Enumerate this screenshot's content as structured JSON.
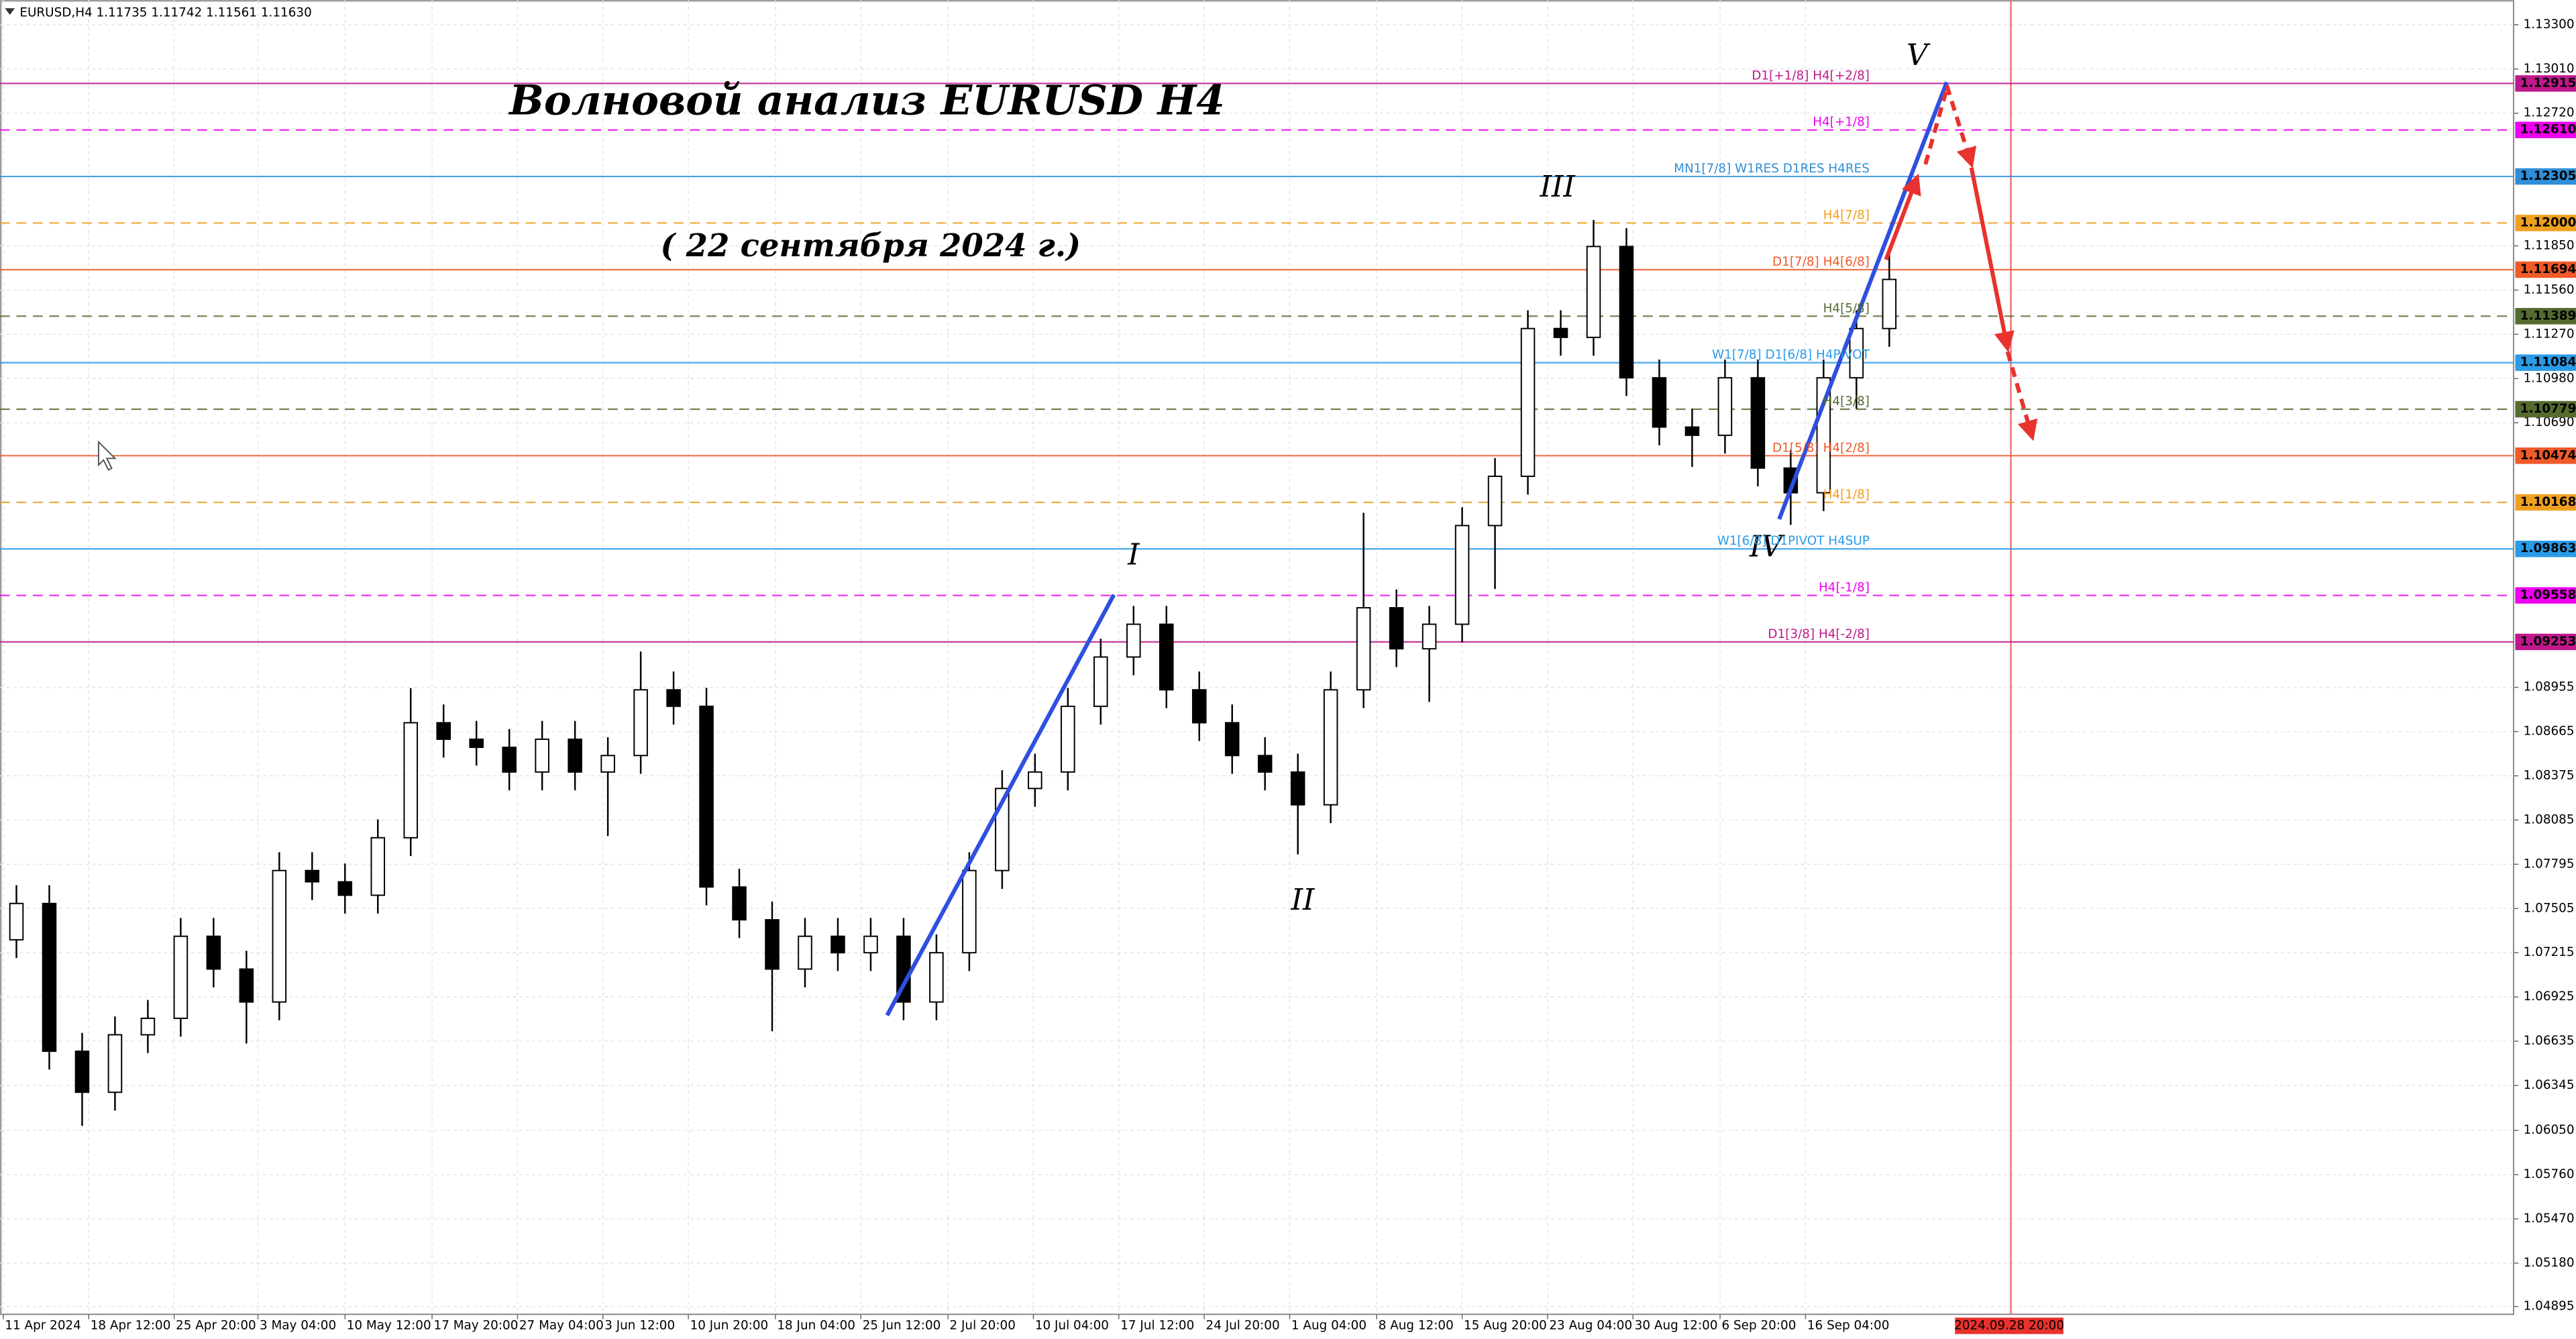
{
  "chart_data": {
    "type": "candlestick",
    "header": "EURUSD,H4  1.11735 1.11742 1.11561 1.11630",
    "title": "Волновой анализ EURUSD H4",
    "subtitle": "( 22 сентября 2024 г.)",
    "wave_labels": [
      "I",
      "II",
      "III",
      "IV",
      "V"
    ],
    "open": [
      1.073,
      1.07538,
      1.06569,
      1.063,
      1.06677,
      1.06785,
      1.07323,
      1.07108,
      1.06892,
      1.07754,
      1.0768,
      1.07592,
      1.07969,
      1.08723,
      1.08615,
      1.08562,
      1.084,
      1.08615,
      1.084,
      1.08508,
      1.08939,
      1.08831,
      1.07646,
      1.07431,
      1.07108,
      1.07323,
      1.07215,
      1.07323,
      1.06892,
      1.07215,
      1.07754,
      1.08292,
      1.084,
      1.08831,
      1.09154,
      1.09369,
      1.08939,
      1.08723,
      1.08508,
      1.084,
      1.08185,
      1.08939,
      1.09477,
      1.09208,
      1.09369,
      1.10016,
      1.10339,
      1.11308,
      1.1125,
      1.11846,
      1.10985,
      1.10662,
      1.10608,
      1.10985,
      1.10393,
      1.10231,
      1.10985,
      1.11308
    ],
    "high": [
      1.07658,
      1.07658,
      1.06689,
      1.06797,
      1.06905,
      1.07443,
      1.07443,
      1.07228,
      1.07874,
      1.07874,
      1.078,
      1.08089,
      1.0895,
      1.08843,
      1.08735,
      1.08682,
      1.08735,
      1.08735,
      1.08628,
      1.0919,
      1.09059,
      1.08951,
      1.07766,
      1.07551,
      1.07443,
      1.07443,
      1.07443,
      1.07443,
      1.07335,
      1.07874,
      1.08412,
      1.0852,
      1.08951,
      1.09274,
      1.09489,
      1.09489,
      1.09059,
      1.08843,
      1.08628,
      1.0852,
      1.09059,
      1.101,
      1.09597,
      1.09489,
      1.10136,
      1.10459,
      1.11428,
      1.11428,
      1.1202,
      1.11966,
      1.11105,
      1.10782,
      1.11105,
      1.11105,
      1.10513,
      1.11105,
      1.11428,
      1.1181
    ],
    "low": [
      1.0718,
      1.06449,
      1.0608,
      1.0618,
      1.06557,
      1.06665,
      1.06988,
      1.0662,
      1.06772,
      1.0756,
      1.07472,
      1.07472,
      1.07849,
      1.08495,
      1.08442,
      1.0828,
      1.0828,
      1.0828,
      1.0798,
      1.08388,
      1.08711,
      1.07526,
      1.07311,
      1.067,
      1.06988,
      1.07095,
      1.07095,
      1.06772,
      1.06772,
      1.07095,
      1.07634,
      1.08172,
      1.0828,
      1.08711,
      1.09034,
      1.08819,
      1.08603,
      1.08388,
      1.0828,
      1.0786,
      1.08065,
      1.08819,
      1.09088,
      1.0886,
      1.09249,
      1.096,
      1.10219,
      1.1113,
      1.1113,
      1.10865,
      1.10542,
      1.104,
      1.10488,
      1.10273,
      1.1002,
      1.10111,
      1.1078,
      1.11188
    ],
    "close": [
      1.07538,
      1.06569,
      1.063,
      1.06677,
      1.06785,
      1.07323,
      1.07108,
      1.06892,
      1.07754,
      1.0768,
      1.07592,
      1.07969,
      1.08723,
      1.08615,
      1.08562,
      1.084,
      1.08615,
      1.084,
      1.08508,
      1.08939,
      1.08831,
      1.07646,
      1.07431,
      1.07108,
      1.07323,
      1.07215,
      1.07323,
      1.06892,
      1.07215,
      1.07754,
      1.08292,
      1.084,
      1.08831,
      1.09154,
      1.09369,
      1.08939,
      1.08723,
      1.08508,
      1.084,
      1.08185,
      1.08939,
      1.09477,
      1.09208,
      1.09369,
      1.10016,
      1.10339,
      1.11308,
      1.1125,
      1.11846,
      1.10985,
      1.10662,
      1.10608,
      1.10985,
      1.10393,
      1.10231,
      1.10985,
      1.11308,
      1.1163
    ],
    "ylim": [
      1.04844,
      1.13462
    ],
    "yticks": [
      {
        "value": 1.133,
        "label": "1.13300"
      },
      {
        "value": 1.1301,
        "label": "1.13010"
      },
      {
        "value": 1.1272,
        "label": "1.12720"
      },
      {
        "value": 1.1185,
        "label": "1.11850"
      },
      {
        "value": 1.1156,
        "label": "1.11560"
      },
      {
        "value": 1.1127,
        "label": "1.11270"
      },
      {
        "value": 1.1098,
        "label": "1.10980"
      },
      {
        "value": 1.1069,
        "label": "1.10690"
      },
      {
        "value": 1.08955,
        "label": "1.08955"
      },
      {
        "value": 1.08665,
        "label": "1.08665"
      },
      {
        "value": 1.08375,
        "label": "1.08375"
      },
      {
        "value": 1.08085,
        "label": "1.08085"
      },
      {
        "value": 1.07795,
        "label": "1.07795"
      },
      {
        "value": 1.07505,
        "label": "1.07505"
      },
      {
        "value": 1.07215,
        "label": "1.07215"
      },
      {
        "value": 1.06925,
        "label": "1.06925"
      },
      {
        "value": 1.06635,
        "label": "1.06635"
      },
      {
        "value": 1.06345,
        "label": "1.06345"
      },
      {
        "value": 1.0605,
        "label": "1.06050"
      },
      {
        "value": 1.0576,
        "label": "1.05760"
      },
      {
        "value": 1.0547,
        "label": "1.05470"
      },
      {
        "value": 1.0518,
        "label": "1.05180"
      },
      {
        "value": 1.04895,
        "label": "1.04895"
      }
    ],
    "xlim": [
      0,
      76.5
    ],
    "xticks": [
      {
        "value": 0.1,
        "label": "11 Apr 2024"
      },
      {
        "value": 2.7,
        "label": "18 Apr 12:00"
      },
      {
        "value": 5.3,
        "label": "25 Apr 20:00"
      },
      {
        "value": 7.85,
        "label": "3 May 04:00"
      },
      {
        "value": 10.5,
        "label": "10 May 12:00"
      },
      {
        "value": 13.15,
        "label": "17 May 20:00"
      },
      {
        "value": 15.75,
        "label": "27 May 04:00"
      },
      {
        "value": 18.35,
        "label": "3 Jun 12:00"
      },
      {
        "value": 20.95,
        "label": "10 Jun 20:00"
      },
      {
        "value": 23.6,
        "label": "18 Jun 04:00"
      },
      {
        "value": 26.2,
        "label": "25 Jun 12:00"
      },
      {
        "value": 28.85,
        "label": "2 Jul 20:00"
      },
      {
        "value": 31.45,
        "label": "10 Jul 04:00"
      },
      {
        "value": 34.05,
        "label": "17 Jul 12:00"
      },
      {
        "value": 36.65,
        "label": "24 Jul 20:00"
      },
      {
        "value": 39.25,
        "label": "1 Aug 04:00"
      },
      {
        "value": 41.9,
        "label": "8 Aug 12:00"
      },
      {
        "value": 44.5,
        "label": "15 Aug 20:00"
      },
      {
        "value": 47.1,
        "label": "23 Aug 04:00"
      },
      {
        "value": 49.7,
        "label": "30 Aug 12:00"
      },
      {
        "value": 52.35,
        "label": "6 Sep 20:00"
      },
      {
        "value": 54.95,
        "label": "16 Sep 04:00"
      }
    ],
    "cursor_time": {
      "value": 61.2,
      "label": "2024.09.28 20:00"
    },
    "grid": true,
    "levels": [
      {
        "value": 1.12915,
        "value_label": "1.12915",
        "name": "D1[+1/8] H4[+2/8]",
        "color": "#c0188c",
        "dash": false
      },
      {
        "value": 1.1261,
        "value_label": "1.12610",
        "name": "H4[+1/8]",
        "color": "#ee00ee",
        "dash": true
      },
      {
        "value": 1.12305,
        "value_label": "1.12305",
        "name": "MN1[7/8] W1RES D1RES H4RES",
        "color": "#2f8fd8",
        "dash": false
      },
      {
        "value": 1.12,
        "value_label": "1.12000",
        "name": "H4[7/8]",
        "color": "#f0a020",
        "dash": true
      },
      {
        "value": 1.11694,
        "value_label": "1.11694",
        "name": "D1[7/8] H4[6/8]",
        "color": "#f05a28",
        "dash": false
      },
      {
        "value": 1.11389,
        "value_label": "1.11389",
        "name": "H4[5/8]",
        "color": "#556b2f",
        "dash": true
      },
      {
        "value": 1.11084,
        "value_label": "1.11084",
        "name": "W1[7/8] D1[6/8] H4PIVOT",
        "color": "#2a9be8",
        "dash": false
      },
      {
        "value": 1.10779,
        "value_label": "1.10779",
        "name": "H4[3/8]",
        "color": "#556b2f",
        "dash": true
      },
      {
        "value": 1.10474,
        "value_label": "1.10474",
        "name": "D1[5/8] H4[2/8]",
        "color": "#f05a28",
        "dash": false
      },
      {
        "value": 1.10168,
        "value_label": "1.10168",
        "name": "H4[1/8]",
        "color": "#f0a020",
        "dash": true
      },
      {
        "value": 1.09863,
        "value_label": "1.09863",
        "name": "W1[6/8] D1PIVOT H4SUP",
        "color": "#2a9be8",
        "dash": false
      },
      {
        "value": 1.09558,
        "value_label": "1.09558",
        "name": "H4[-1/8]",
        "color": "#ee00ee",
        "dash": true
      },
      {
        "value": 1.09253,
        "value_label": "1.09253",
        "name": "D1[3/8] H4[-2/8]",
        "color": "#c0188c",
        "dash": false
      }
    ]
  }
}
